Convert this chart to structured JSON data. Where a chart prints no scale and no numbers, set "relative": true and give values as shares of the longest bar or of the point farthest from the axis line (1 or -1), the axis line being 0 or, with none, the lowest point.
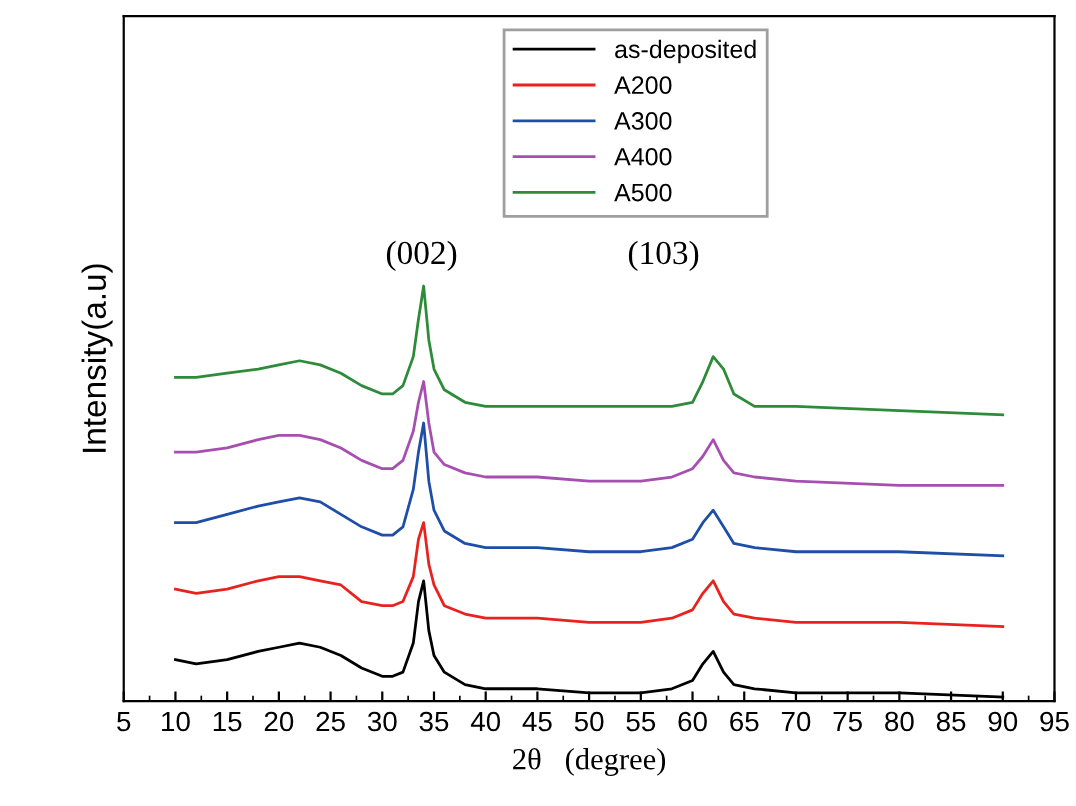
{
  "chart_data": {
    "type": "line",
    "relative": true,
    "xlabel": "2θ   (degree)",
    "ylabel": "Intensity(a.u)",
    "x": [
      10,
      12,
      15,
      18,
      20,
      22,
      24,
      26,
      28,
      30,
      31,
      32,
      33,
      33.5,
      34,
      34.5,
      35,
      36,
      38,
      40,
      45,
      50,
      55,
      58,
      60,
      61,
      62,
      63,
      64,
      66,
      70,
      80,
      90
    ],
    "xlim": [
      5,
      95
    ],
    "xticks": [
      5,
      10,
      15,
      20,
      25,
      30,
      35,
      40,
      45,
      50,
      55,
      60,
      65,
      70,
      75,
      80,
      85,
      90,
      95
    ],
    "series": [
      {
        "name": "as-deposited",
        "color": "#000000",
        "values": [
          0.1,
          0.09,
          0.1,
          0.12,
          0.13,
          0.14,
          0.13,
          0.11,
          0.08,
          0.06,
          0.06,
          0.07,
          0.14,
          0.24,
          0.29,
          0.17,
          0.11,
          0.07,
          0.04,
          0.03,
          0.03,
          0.02,
          0.02,
          0.03,
          0.05,
          0.09,
          0.12,
          0.07,
          0.04,
          0.03,
          0.02,
          0.02,
          0.01
        ]
      },
      {
        "name": "A200",
        "color": "#e8231f",
        "values": [
          0.27,
          0.26,
          0.27,
          0.29,
          0.3,
          0.3,
          0.29,
          0.28,
          0.24,
          0.23,
          0.23,
          0.24,
          0.3,
          0.39,
          0.43,
          0.33,
          0.28,
          0.23,
          0.21,
          0.2,
          0.2,
          0.19,
          0.19,
          0.2,
          0.22,
          0.26,
          0.29,
          0.24,
          0.21,
          0.2,
          0.19,
          0.19,
          0.18
        ]
      },
      {
        "name": "A300",
        "color": "#1f4ea8",
        "values": [
          0.43,
          0.43,
          0.45,
          0.47,
          0.48,
          0.49,
          0.48,
          0.45,
          0.42,
          0.4,
          0.4,
          0.42,
          0.51,
          0.6,
          0.67,
          0.53,
          0.46,
          0.41,
          0.38,
          0.37,
          0.37,
          0.36,
          0.36,
          0.37,
          0.39,
          0.43,
          0.46,
          0.42,
          0.38,
          0.37,
          0.36,
          0.36,
          0.35
        ]
      },
      {
        "name": "A400",
        "color": "#a64fb0",
        "values": [
          0.6,
          0.6,
          0.61,
          0.63,
          0.64,
          0.64,
          0.63,
          0.61,
          0.58,
          0.56,
          0.56,
          0.58,
          0.65,
          0.72,
          0.77,
          0.67,
          0.6,
          0.57,
          0.55,
          0.54,
          0.54,
          0.53,
          0.53,
          0.54,
          0.56,
          0.59,
          0.63,
          0.58,
          0.55,
          0.54,
          0.53,
          0.52,
          0.52
        ]
      },
      {
        "name": "A500",
        "color": "#2e8b3a",
        "values": [
          0.78,
          0.78,
          0.79,
          0.8,
          0.81,
          0.82,
          0.81,
          0.79,
          0.76,
          0.74,
          0.74,
          0.76,
          0.83,
          0.92,
          1,
          0.87,
          0.8,
          0.75,
          0.72,
          0.71,
          0.71,
          0.71,
          0.71,
          0.71,
          0.72,
          0.77,
          0.83,
          0.8,
          0.74,
          0.71,
          0.71,
          0.7,
          0.69
        ]
      }
    ],
    "annotations": [
      "(002)",
      "(103)"
    ],
    "legend": "top right",
    "marker": "none",
    "line_style": "solid",
    "grid": false
  }
}
